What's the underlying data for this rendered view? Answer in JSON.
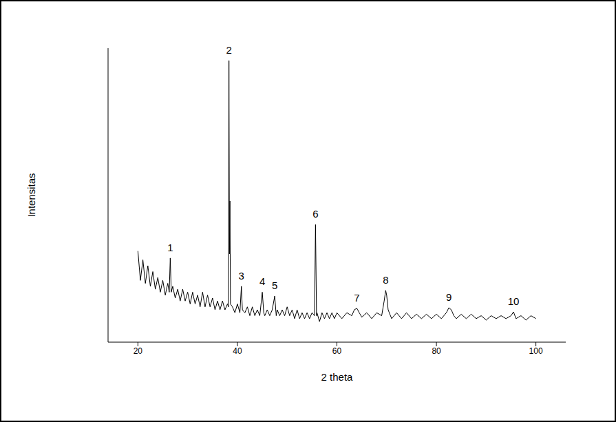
{
  "chart_data": {
    "type": "line",
    "x_label": "2 theta",
    "y_label": "Intensitas",
    "color": "#000000",
    "grid": false,
    "tick_labels": "x",
    "xlim": [
      14,
      106
    ],
    "xticks": [
      20,
      40,
      60,
      80,
      100
    ],
    "ylim": [
      0,
      100
    ],
    "x": [
      20,
      20.5,
      21,
      21.5,
      22,
      22.5,
      23,
      23.5,
      24,
      24.5,
      25,
      25.5,
      26,
      26.3,
      26.5,
      26.7,
      27,
      27.5,
      28,
      28.5,
      29,
      29.5,
      30,
      30.5,
      31,
      31.5,
      32,
      32.5,
      33,
      33.5,
      34,
      34.5,
      35,
      35.5,
      36,
      36.5,
      37,
      37.5,
      38,
      38.2,
      38.3,
      38.4,
      38.5,
      38.6,
      39,
      39.5,
      40,
      40.5,
      40.8,
      41,
      41.5,
      42,
      42.5,
      43,
      43.5,
      44,
      44.5,
      45,
      45.3,
      45.5,
      46,
      46.5,
      47,
      47.5,
      47.8,
      48,
      48.5,
      49,
      49.5,
      50,
      50.5,
      51,
      51.5,
      52,
      52.5,
      53,
      53.5,
      54,
      54.5,
      55,
      55.5,
      55.7,
      55.9,
      56,
      56.5,
      57,
      57.5,
      58,
      58.5,
      59,
      59.5,
      60,
      61,
      62,
      63,
      63.5,
      64,
      64.5,
      65,
      66,
      67,
      68,
      69,
      69.5,
      69.8,
      70,
      70.3,
      71,
      72,
      73,
      74,
      75,
      76,
      77,
      78,
      79,
      80,
      81,
      82,
      82.5,
      83,
      83.5,
      84,
      85,
      86,
      87,
      88,
      89,
      90,
      91,
      92,
      93,
      94,
      95,
      95.5,
      96,
      97,
      98,
      99,
      100
    ],
    "values": [
      31,
      21,
      28,
      20,
      26,
      19,
      24,
      18,
      22,
      17,
      21,
      16,
      20,
      17,
      28.6,
      17,
      19,
      15,
      18,
      14,
      18,
      14,
      17,
      13,
      17,
      13,
      16,
      12,
      17,
      12,
      16,
      12,
      15,
      11,
      14,
      11,
      14,
      11,
      13,
      12,
      95.8,
      30,
      48,
      13,
      12,
      10,
      13,
      10,
      19,
      11,
      10,
      12,
      9,
      12,
      9,
      11,
      9,
      17,
      10,
      9,
      11,
      9,
      11,
      15.7,
      9,
      11,
      9,
      11,
      9,
      12,
      9,
      11,
      8,
      11,
      8,
      10,
      8,
      10,
      8,
      10,
      9,
      40,
      9,
      10,
      7,
      10,
      8,
      10,
      8,
      10,
      8,
      10,
      8,
      10,
      9,
      11,
      11.5,
      10,
      8.5,
      10,
      8,
      10,
      9,
      14,
      17.6,
      16,
      11,
      8,
      10,
      8,
      10,
      8,
      9.5,
      8,
      9.5,
      8,
      9.5,
      8,
      10,
      11.7,
      11,
      9,
      8,
      9.5,
      8,
      9.5,
      8,
      9,
      7.5,
      9,
      8,
      9,
      8,
      9,
      10.3,
      8,
      9,
      7.5,
      9,
      8
    ],
    "annotations": [
      {
        "text": "1",
        "x": 26.5,
        "y": 28.6
      },
      {
        "text": "2",
        "x": 38.3,
        "y": 95.8
      },
      {
        "text": "3",
        "x": 40.8,
        "y": 19
      },
      {
        "text": "4",
        "x": 45,
        "y": 17
      },
      {
        "text": "5",
        "x": 47.5,
        "y": 15.7
      },
      {
        "text": "6",
        "x": 55.7,
        "y": 40
      },
      {
        "text": "7",
        "x": 64,
        "y": 11.5
      },
      {
        "text": "8",
        "x": 69.8,
        "y": 17.6
      },
      {
        "text": "9",
        "x": 82.5,
        "y": 11.7
      },
      {
        "text": "10",
        "x": 95.5,
        "y": 10.3
      }
    ]
  }
}
